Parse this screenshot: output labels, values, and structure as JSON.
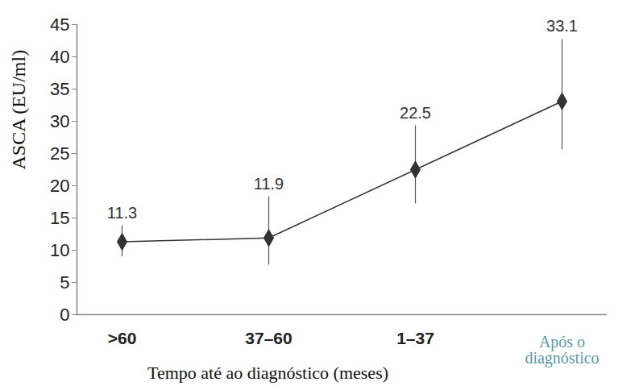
{
  "chart_data": {
    "type": "line",
    "x_label": "Tempo até ao diagnóstico (meses)",
    "y_label": "ASCA (EU/ml)",
    "categories": [
      ">60",
      "37–60",
      "1–37",
      "Após o diagnóstico"
    ],
    "values": [
      11.3,
      11.9,
      22.5,
      33.1
    ],
    "error_lower": [
      9.0,
      7.7,
      17.2,
      25.6
    ],
    "error_upper": [
      13.8,
      18.3,
      29.3,
      42.7
    ],
    "ylim": [
      0,
      45
    ],
    "yticks": [
      0,
      5,
      10,
      15,
      20,
      25,
      30,
      35,
      40,
      45
    ],
    "color": "#333333",
    "marker": "diamond",
    "data_labels": true,
    "grid": false
  }
}
